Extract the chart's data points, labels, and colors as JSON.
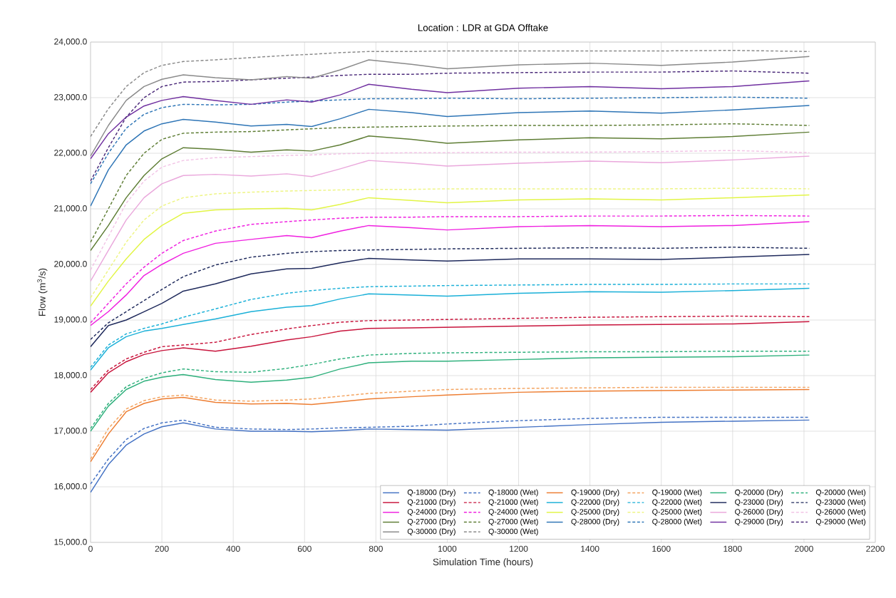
{
  "chart_data": {
    "type": "line",
    "title": "Location : LDR at GDA Offtake",
    "xlabel": "Simulation Time (hours)",
    "ylabel": "Flow (m$^{3}$/s)",
    "x": [
      0,
      50,
      100,
      150,
      200,
      260,
      350,
      450,
      550,
      620,
      700,
      780,
      900,
      1000,
      1200,
      1400,
      1600,
      1800,
      2015
    ],
    "xlim": [
      0,
      2200
    ],
    "xticks": [
      0,
      200,
      400,
      600,
      800,
      1000,
      1200,
      1400,
      1600,
      1800,
      2000,
      2200
    ],
    "ylim": [
      15000,
      24000
    ],
    "yticks": [
      {
        "value": 15000,
        "label": "15,000.0"
      },
      {
        "value": 16000,
        "label": "16,000.0"
      },
      {
        "value": 17000,
        "label": "17,000.0"
      },
      {
        "value": 18000,
        "label": "18,000.0"
      },
      {
        "value": 19000,
        "label": "19,000.0"
      },
      {
        "value": 20000,
        "label": "20,000.0"
      },
      {
        "value": 21000,
        "label": "21,000.0"
      },
      {
        "value": 22000,
        "label": "22,000.0"
      },
      {
        "value": 23000,
        "label": "23,000.0"
      },
      {
        "value": 24000,
        "label": "24,000.0"
      }
    ],
    "grid": true,
    "legend": "bottom right",
    "series": [
      {
        "name": "Q-18000 (Dry)",
        "color": "#4472c4",
        "line_style": "solid",
        "values": [
          15900,
          16400,
          16750,
          16950,
          17080,
          17150,
          17040,
          17000,
          17000,
          16990,
          17010,
          17040,
          17030,
          17020,
          17070,
          17120,
          17160,
          17180,
          17200
        ]
      },
      {
        "name": "Q-18000 (Wet)",
        "color": "#4472c4",
        "line_style": "dashed",
        "values": [
          16050,
          16500,
          16850,
          17050,
          17150,
          17200,
          17070,
          17040,
          17030,
          17040,
          17060,
          17070,
          17090,
          17130,
          17190,
          17230,
          17250,
          17250,
          17250
        ]
      },
      {
        "name": "Q-19000 (Dry)",
        "color": "#ed7d31",
        "line_style": "solid",
        "values": [
          16450,
          16950,
          17350,
          17500,
          17580,
          17610,
          17520,
          17490,
          17500,
          17480,
          17530,
          17580,
          17620,
          17650,
          17700,
          17720,
          17730,
          17740,
          17750
        ]
      },
      {
        "name": "Q-19000 (Wet)",
        "color": "#f4a460",
        "line_style": "dashed",
        "values": [
          16500,
          17050,
          17400,
          17550,
          17620,
          17650,
          17560,
          17540,
          17560,
          17580,
          17630,
          17680,
          17720,
          17750,
          17770,
          17780,
          17790,
          17790,
          17790
        ]
      },
      {
        "name": "Q-20000 (Dry)",
        "color": "#2eb07c",
        "line_style": "solid",
        "values": [
          17000,
          17450,
          17750,
          17900,
          17970,
          18020,
          17930,
          17880,
          17920,
          17970,
          18120,
          18230,
          18260,
          18260,
          18290,
          18320,
          18330,
          18340,
          18370
        ]
      },
      {
        "name": "Q-20000 (Wet)",
        "color": "#2eb07c",
        "line_style": "dashed",
        "values": [
          17050,
          17500,
          17800,
          17950,
          18050,
          18120,
          18070,
          18060,
          18130,
          18200,
          18300,
          18370,
          18400,
          18410,
          18420,
          18430,
          18430,
          18440,
          18440
        ]
      },
      {
        "name": "Q-21000 (Dry)",
        "color": "#c8143c",
        "line_style": "solid",
        "values": [
          17700,
          18050,
          18250,
          18380,
          18450,
          18500,
          18440,
          18530,
          18640,
          18700,
          18800,
          18850,
          18860,
          18870,
          18890,
          18910,
          18920,
          18930,
          18970
        ]
      },
      {
        "name": "Q-21000 (Wet)",
        "color": "#c8143c",
        "line_style": "dashed",
        "values": [
          17750,
          18100,
          18300,
          18420,
          18520,
          18550,
          18600,
          18740,
          18840,
          18900,
          18960,
          18990,
          19000,
          19010,
          19030,
          19050,
          19060,
          19070,
          19060
        ]
      },
      {
        "name": "Q-22000 (Dry)",
        "color": "#1ab0d8",
        "line_style": "solid",
        "values": [
          18100,
          18500,
          18700,
          18800,
          18850,
          18920,
          19020,
          19150,
          19230,
          19260,
          19380,
          19470,
          19450,
          19430,
          19480,
          19510,
          19500,
          19530,
          19570
        ]
      },
      {
        "name": "Q-22000 (Wet)",
        "color": "#1ab0d8",
        "line_style": "dashed",
        "values": [
          18150,
          18550,
          18750,
          18850,
          18930,
          19050,
          19200,
          19370,
          19480,
          19530,
          19570,
          19600,
          19610,
          19620,
          19630,
          19640,
          19640,
          19650,
          19650
        ]
      },
      {
        "name": "Q-23000 (Dry)",
        "color": "#1f2a5c",
        "line_style": "solid",
        "values": [
          18520,
          18900,
          19000,
          19150,
          19300,
          19520,
          19650,
          19830,
          19920,
          19930,
          20030,
          20110,
          20080,
          20060,
          20100,
          20100,
          20090,
          20130,
          20180
        ]
      },
      {
        "name": "Q-23000 (Wet)",
        "color": "#1f2a5c",
        "line_style": "dashed",
        "values": [
          18650,
          18950,
          19150,
          19350,
          19550,
          19780,
          19990,
          20130,
          20200,
          20230,
          20250,
          20260,
          20270,
          20280,
          20290,
          20300,
          20290,
          20310,
          20290
        ]
      },
      {
        "name": "Q-24000 (Dry)",
        "color": "#f020e0",
        "line_style": "solid",
        "values": [
          18900,
          19150,
          19450,
          19800,
          20000,
          20200,
          20380,
          20450,
          20520,
          20480,
          20600,
          20700,
          20660,
          20620,
          20680,
          20700,
          20680,
          20700,
          20770
        ]
      },
      {
        "name": "Q-24000 (Wet)",
        "color": "#f020e0",
        "line_style": "dashed",
        "values": [
          18950,
          19300,
          19650,
          19950,
          20200,
          20430,
          20600,
          20720,
          20770,
          20800,
          20830,
          20850,
          20850,
          20860,
          20860,
          20870,
          20870,
          20880,
          20870
        ]
      },
      {
        "name": "Q-25000 (Dry)",
        "color": "#e2f545",
        "line_style": "solid",
        "values": [
          19250,
          19700,
          20100,
          20450,
          20700,
          20920,
          20980,
          21000,
          21010,
          20980,
          21080,
          21200,
          21150,
          21110,
          21160,
          21180,
          21160,
          21200,
          21250
        ]
      },
      {
        "name": "Q-25000 (Wet)",
        "color": "#eef585",
        "line_style": "dashed",
        "values": [
          19400,
          19900,
          20400,
          20800,
          21050,
          21200,
          21270,
          21300,
          21320,
          21330,
          21340,
          21350,
          21350,
          21360,
          21360,
          21360,
          21360,
          21370,
          21360
        ]
      },
      {
        "name": "Q-26000 (Dry)",
        "color": "#eaa8dc",
        "line_style": "solid",
        "values": [
          19700,
          20250,
          20800,
          21200,
          21450,
          21600,
          21620,
          21590,
          21630,
          21580,
          21720,
          21870,
          21820,
          21770,
          21820,
          21860,
          21830,
          21880,
          21950
        ]
      },
      {
        "name": "Q-26000 (Wet)",
        "color": "#f2c4e6",
        "line_style": "dashed",
        "values": [
          19900,
          20500,
          21100,
          21500,
          21750,
          21870,
          21920,
          21940,
          21960,
          21970,
          21990,
          22000,
          22010,
          22010,
          22020,
          22020,
          22030,
          22050,
          22010
        ]
      },
      {
        "name": "Q-27000 (Dry)",
        "color": "#5e7d34",
        "line_style": "solid",
        "values": [
          20250,
          20700,
          21200,
          21600,
          21900,
          22100,
          22070,
          22020,
          22060,
          22040,
          22150,
          22310,
          22250,
          22180,
          22240,
          22280,
          22260,
          22300,
          22380
        ]
      },
      {
        "name": "Q-27000 (Wet)",
        "color": "#5e7d34",
        "line_style": "dashed",
        "values": [
          20400,
          21000,
          21600,
          22000,
          22250,
          22360,
          22380,
          22390,
          22420,
          22440,
          22460,
          22470,
          22480,
          22490,
          22500,
          22500,
          22510,
          22530,
          22500
        ]
      },
      {
        "name": "Q-28000 (Dry)",
        "color": "#2e75b6",
        "line_style": "solid",
        "values": [
          21050,
          21700,
          22150,
          22400,
          22530,
          22610,
          22560,
          22490,
          22520,
          22480,
          22620,
          22790,
          22730,
          22660,
          22730,
          22760,
          22720,
          22780,
          22860
        ]
      },
      {
        "name": "Q-28000 (Wet)",
        "color": "#2e75b6",
        "line_style": "dashed",
        "values": [
          21450,
          22000,
          22450,
          22700,
          22820,
          22880,
          22870,
          22880,
          22920,
          22940,
          22960,
          22980,
          22980,
          22990,
          22980,
          22990,
          23000,
          23010,
          22990
        ]
      },
      {
        "name": "Q-29000 (Dry)",
        "color": "#7030a0",
        "line_style": "solid",
        "values": [
          21900,
          22350,
          22650,
          22850,
          22950,
          23020,
          22950,
          22880,
          22960,
          22920,
          23050,
          23240,
          23150,
          23090,
          23170,
          23200,
          23160,
          23200,
          23300
        ]
      },
      {
        "name": "Q-29000 (Wet)",
        "color": "#4b2a7a",
        "line_style": "dashed",
        "values": [
          21500,
          22100,
          22650,
          23000,
          23200,
          23280,
          23290,
          23320,
          23350,
          23370,
          23400,
          23420,
          23420,
          23440,
          23450,
          23460,
          23460,
          23480,
          23440
        ]
      },
      {
        "name": "Q-30000 (Dry)",
        "color": "#8a8a8a",
        "line_style": "solid",
        "values": [
          21950,
          22500,
          22950,
          23200,
          23330,
          23410,
          23360,
          23320,
          23380,
          23350,
          23500,
          23680,
          23600,
          23520,
          23590,
          23620,
          23580,
          23640,
          23740
        ]
      },
      {
        "name": "Q-30000 (Wet)",
        "color": "#8a8a8a",
        "line_style": "dashed",
        "values": [
          22300,
          22800,
          23200,
          23450,
          23580,
          23650,
          23680,
          23720,
          23760,
          23780,
          23810,
          23830,
          23830,
          23840,
          23840,
          23840,
          23840,
          23850,
          23830
        ]
      }
    ]
  }
}
